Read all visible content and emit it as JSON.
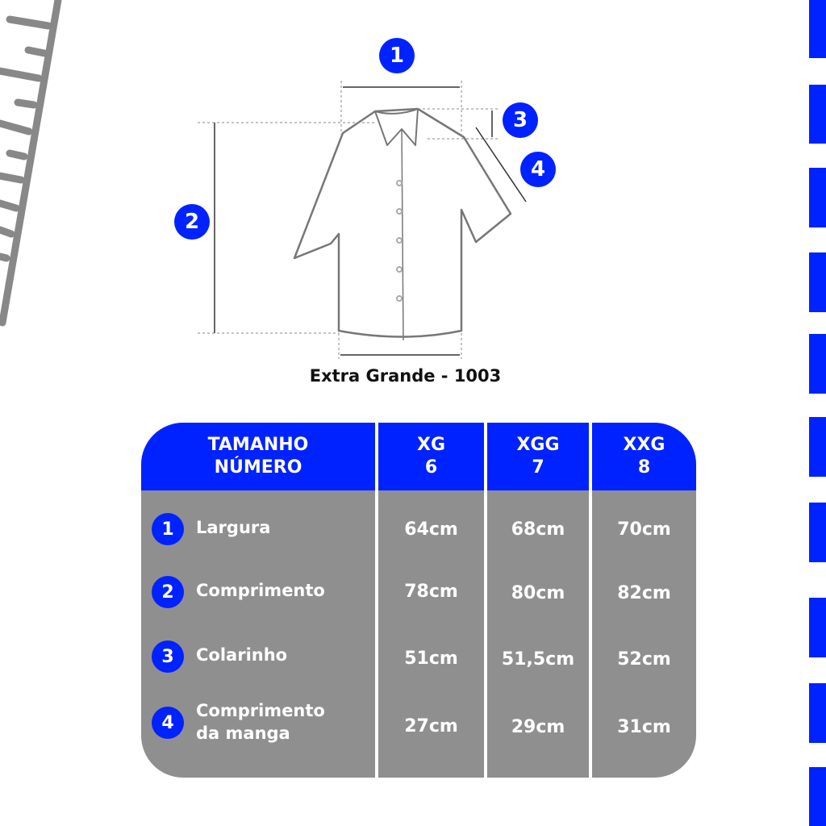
{
  "caption": "Extra Grande - 1003",
  "diagram_badges": [
    "1",
    "2",
    "3",
    "4"
  ],
  "colors": {
    "accent": "#0022ff",
    "table_body": "#8f8f8f",
    "ruler": "#888888"
  },
  "table": {
    "header": {
      "line1": "TAMANHO",
      "line2": "NÚMERO"
    },
    "sizes": [
      {
        "label": "XG",
        "number": "6"
      },
      {
        "label": "XGG",
        "number": "7"
      },
      {
        "label": "XXG",
        "number": "8"
      }
    ],
    "rows": [
      {
        "num": "1",
        "label_1": "Largura",
        "label_2": "",
        "values": [
          "64cm",
          "68cm",
          "70cm"
        ]
      },
      {
        "num": "2",
        "label_1": "Comprimento",
        "label_2": "",
        "values": [
          "78cm",
          "80cm",
          "82cm"
        ]
      },
      {
        "num": "3",
        "label_1": "Colarinho",
        "label_2": "",
        "values": [
          "51cm",
          "51,5cm",
          "52cm"
        ]
      },
      {
        "num": "4",
        "label_1": "Comprimento",
        "label_2": "da manga",
        "values": [
          "27cm",
          "29cm",
          "31cm"
        ]
      }
    ]
  }
}
